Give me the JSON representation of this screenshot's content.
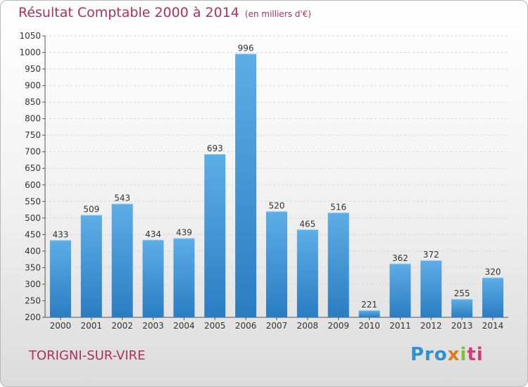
{
  "title": "Résultat Comptable 2000 à 2014",
  "unit": "(en milliers d'€)",
  "commune": "TORIGNI-SUR-VIRE",
  "logo": {
    "p1": "Pro",
    "p2": "x",
    "p3": "i",
    "p4": "ti"
  },
  "colors": {
    "bar_top": "#5dade6",
    "bar_bottom": "#2a7dc2",
    "title": "#b0305a"
  },
  "chart_data": {
    "type": "bar",
    "title": "Résultat Comptable 2000 à 2014",
    "subtitle": "(en milliers d'€)",
    "xlabel": "",
    "ylabel": "",
    "categories": [
      "2000",
      "2001",
      "2002",
      "2003",
      "2004",
      "2005",
      "2006",
      "2007",
      "2008",
      "2009",
      "2010",
      "2011",
      "2012",
      "2013",
      "2014"
    ],
    "values": [
      433,
      509,
      543,
      434,
      439,
      693,
      996,
      520,
      465,
      516,
      221,
      362,
      372,
      255,
      320
    ],
    "ylim": [
      200,
      1050
    ],
    "yticks": [
      200,
      250,
      300,
      350,
      400,
      450,
      500,
      550,
      600,
      650,
      700,
      750,
      800,
      850,
      900,
      950,
      1000,
      1050
    ],
    "grid": true,
    "legend": "none"
  }
}
